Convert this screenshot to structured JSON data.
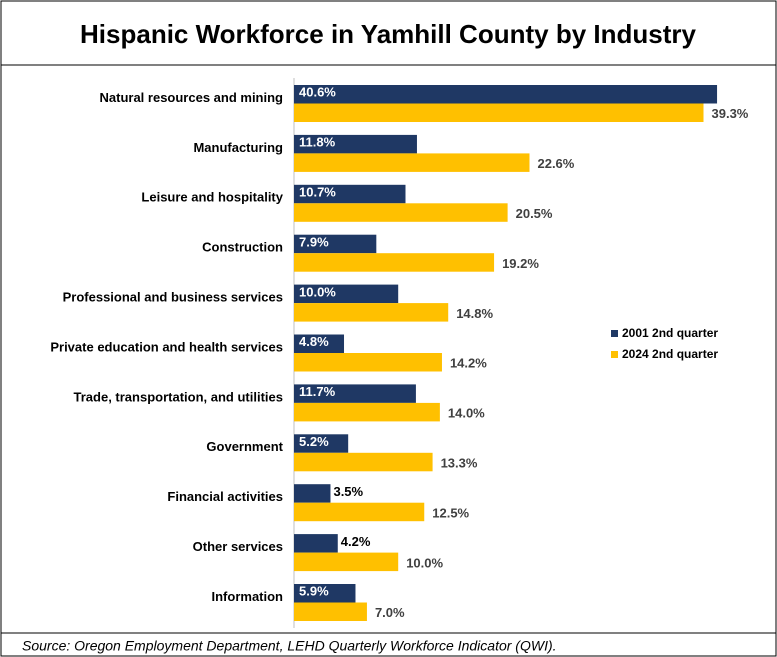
{
  "chart_data": {
    "type": "hbar",
    "title": "Hispanic Workforce in Yamhill County by Industry",
    "source": "Source: Oregon Employment Department, LEHD Quarterly Workforce Indicator (QWI).",
    "categories": [
      "Natural resources and mining",
      "Manufacturing",
      "Leisure and hospitality",
      "Construction",
      "Professional and business services",
      "Private education and health services",
      "Trade, transportation, and utilities",
      "Government",
      "Financial activities",
      "Other services",
      "Information"
    ],
    "series": [
      {
        "name": "2001 2nd quarter",
        "color": "#1f3864",
        "values": [
          40.6,
          11.8,
          10.7,
          7.9,
          10.0,
          4.8,
          11.7,
          5.2,
          3.5,
          4.2,
          5.9
        ],
        "value_labels": [
          "40.6%",
          "11.8%",
          "10.7%",
          "7.9%",
          "10.0%",
          "4.8%",
          "11.7%",
          "5.2%",
          "3.5%",
          "4.2%",
          "5.9%"
        ]
      },
      {
        "name": "2024 2nd quarter",
        "color": "#ffc000",
        "values": [
          39.3,
          22.6,
          20.5,
          19.2,
          14.8,
          14.2,
          14.0,
          13.3,
          12.5,
          10.0,
          7.0
        ],
        "value_labels": [
          "39.3%",
          "22.6%",
          "20.5%",
          "19.2%",
          "14.8%",
          "14.2%",
          "14.0%",
          "13.3%",
          "12.5%",
          "10.0%",
          "7.0%"
        ]
      }
    ],
    "legend": "right"
  }
}
